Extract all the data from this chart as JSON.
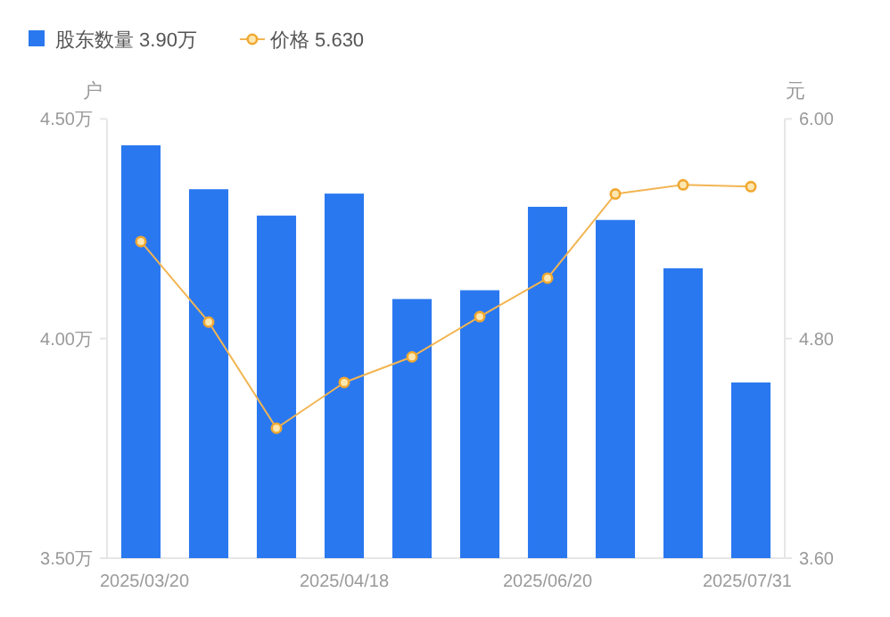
{
  "chart_data": {
    "type": "bar",
    "legend": "top left",
    "marker": "circle",
    "categories": [
      "2025/03/20",
      null,
      null,
      "2025/04/18",
      null,
      null,
      "2025/06/20",
      null,
      null,
      "2025/07/31"
    ],
    "ylabel": "户",
    "y2label": "元",
    "ylim": [
      3.5,
      4.5
    ],
    "yticks": [
      {
        "value": 3.5,
        "label": "3.50万"
      },
      {
        "value": 4.0,
        "label": "4.00万"
      },
      {
        "value": 4.5,
        "label": "4.50万"
      }
    ],
    "y2lim": [
      3.6,
      6.0
    ],
    "y2ticks": [
      {
        "value": 3.6,
        "label": "3.60"
      },
      {
        "value": 4.8,
        "label": "4.80"
      },
      {
        "value": 6.0,
        "label": "6.00"
      }
    ],
    "series": [
      {
        "name": "股东数量 3.90万",
        "color": "#2a78f0",
        "values": [
          4.44,
          4.34,
          4.28,
          4.33,
          4.09,
          4.11,
          4.3,
          4.27,
          4.16,
          3.9
        ]
      },
      {
        "name": "价格 5.630",
        "type": "line",
        "axis": "y2",
        "color": "#f2b552",
        "values": [
          5.33,
          4.89,
          4.31,
          4.56,
          4.7,
          4.92,
          5.13,
          5.59,
          5.64,
          5.63
        ]
      }
    ]
  }
}
